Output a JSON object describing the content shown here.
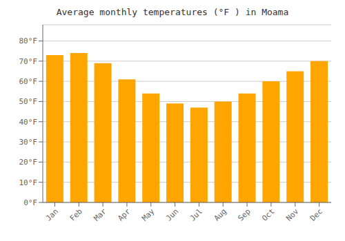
{
  "chart_data": {
    "type": "bar",
    "title": "Average monthly temperatures (°F ) in Moama",
    "categories": [
      "Jan",
      "Feb",
      "Mar",
      "Apr",
      "May",
      "Jun",
      "Jul",
      "Aug",
      "Sep",
      "Oct",
      "Nov",
      "Dec"
    ],
    "values": [
      73,
      74,
      69,
      61,
      54,
      49,
      47,
      50,
      54,
      60,
      65,
      70
    ],
    "color": "#FFA500",
    "ylim": [
      0,
      88
    ],
    "yticks": [
      {
        "value": 0,
        "label": "0°F"
      },
      {
        "value": 10,
        "label": "10°F"
      },
      {
        "value": 20,
        "label": "20°F"
      },
      {
        "value": 30,
        "label": "30°F"
      },
      {
        "value": 40,
        "label": "40°F"
      },
      {
        "value": 50,
        "label": "50°F"
      },
      {
        "value": 60,
        "label": "60°F"
      },
      {
        "value": 70,
        "label": "70°F"
      },
      {
        "value": 80,
        "label": "80°F"
      }
    ],
    "grid": true
  }
}
